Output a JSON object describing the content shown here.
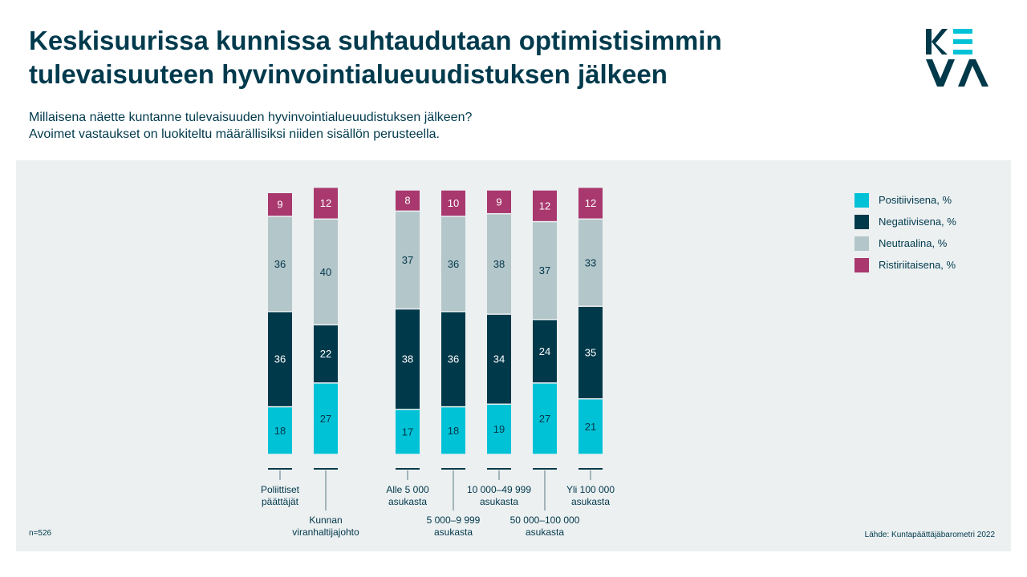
{
  "title_lines": [
    "Keskisuurissa kunnissa suhtaudutaan optimistisimmin",
    "tulevaisuuteen hyvinvointialueuudistuksen jälkeen"
  ],
  "subtitle_lines": [
    "Millaisena näette kuntanne tulevaisuuden hyvinvointialueuudistuksen jälkeen?",
    "Avoimet vastaukset on luokiteltu määrällisiksi niiden sisällön perusteella."
  ],
  "logo_text": "KEVA",
  "n_note": "n=526",
  "source_note": "Lähde: Kuntapäättäjäbarometri 2022",
  "colors": {
    "positive": "#00c2d6",
    "negative": "#00394a",
    "neutral": "#b3c6ca",
    "mixed": "#a8386e",
    "text": "#003a4d"
  },
  "legend": [
    {
      "key": "positive",
      "label": "Positiivisena, %"
    },
    {
      "key": "negative",
      "label": "Negatiivisena, %"
    },
    {
      "key": "neutral",
      "label": "Neutraalina, %"
    },
    {
      "key": "mixed",
      "label": "Ristiriitaisena, %"
    }
  ],
  "chart_data": {
    "type": "bar",
    "stacked": true,
    "categories": [
      [
        "Poliittiset",
        "päättäjät"
      ],
      [
        "Kunnan",
        "viranhaltijajohto"
      ],
      [
        "Alle 5 000",
        "asukasta"
      ],
      [
        "5 000–9 999",
        "asukasta"
      ],
      [
        "10 000–49 999",
        "asukasta"
      ],
      [
        "50 000–100 000",
        "asukasta"
      ],
      [
        "Yli 100 000",
        "asukasta"
      ]
    ],
    "label_position": [
      "high",
      "low",
      "high",
      "low",
      "high",
      "low",
      "high"
    ],
    "group_break_after": 1,
    "series": [
      {
        "name": "Positiivisena, %",
        "key": "positive",
        "values": [
          18,
          27,
          17,
          18,
          19,
          27,
          21
        ]
      },
      {
        "name": "Negatiivisena, %",
        "key": "negative",
        "values": [
          36,
          22,
          38,
          36,
          34,
          24,
          35
        ]
      },
      {
        "name": "Neutraalina, %",
        "key": "neutral",
        "values": [
          36,
          40,
          37,
          36,
          38,
          37,
          33
        ]
      },
      {
        "name": "Ristiriitaisena, %",
        "key": "mixed",
        "values": [
          9,
          12,
          8,
          10,
          9,
          12,
          12
        ]
      }
    ],
    "ylim": [
      0,
      100
    ],
    "grid": false,
    "legend_position": "top-right"
  }
}
